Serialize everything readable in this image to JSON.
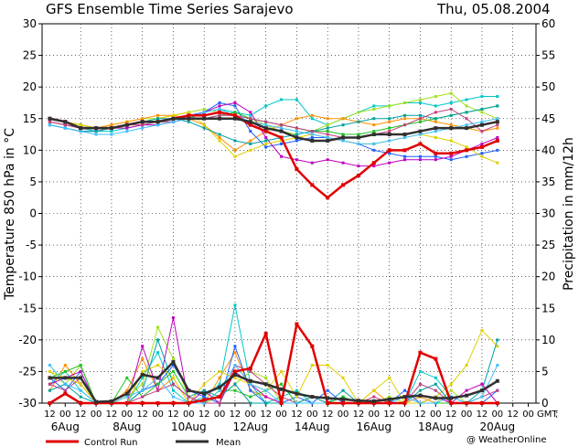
{
  "header": {
    "title": "GFS Ensemble Time Series Sarajevo",
    "date": "Thu, 05.08.2004"
  },
  "credit": "@ WeatherOnline",
  "gmt_label": "GMT",
  "gmt_suffix": ";",
  "chart_data": {
    "type": "line",
    "xlabel": "",
    "ylabel_left": "Temperature 850 hPa in °C",
    "ylabel_right": "Precipitation in mm/12h",
    "ylim_left": [
      -30,
      30
    ],
    "ylim_right": [
      0,
      60
    ],
    "yticks_left": [
      -30,
      -25,
      -20,
      -15,
      -10,
      -5,
      0,
      5,
      10,
      15,
      20,
      25,
      30
    ],
    "yticks_right": [
      0,
      5,
      10,
      15,
      20,
      25,
      30,
      35,
      40,
      45,
      50,
      55,
      60
    ],
    "grid": true,
    "x_hour_labels": [
      "12",
      "00",
      "12",
      "00",
      "12",
      "00",
      "12",
      "00",
      "12",
      "00",
      "12",
      "00",
      "12",
      "00",
      "12",
      "00",
      "12",
      "00",
      "12",
      "00",
      "12",
      "00",
      "12",
      "00",
      "12",
      "00",
      "12",
      "00",
      "12",
      "00",
      "12",
      "00"
    ],
    "x_date_labels": [
      {
        "label": "6Aug",
        "step": 1
      },
      {
        "label": "8Aug",
        "step": 5
      },
      {
        "label": "10Aug",
        "step": 9
      },
      {
        "label": "12Aug",
        "step": 13
      },
      {
        "label": "14Aug",
        "step": 17
      },
      {
        "label": "16Aug",
        "step": 21
      },
      {
        "label": "18Aug",
        "step": 25
      },
      {
        "label": "20Aug",
        "step": 29
      }
    ],
    "legend": [
      {
        "name": "Control Run",
        "color": "#e00000"
      },
      {
        "name": "Mean",
        "color": "#303030"
      }
    ],
    "temperature": {
      "control": [
        15,
        14.5,
        13.5,
        13.5,
        13.5,
        14,
        14.5,
        14.5,
        15,
        15.5,
        15.5,
        16,
        15.5,
        14,
        13,
        12,
        7,
        4.5,
        2.5,
        4.5,
        6,
        8,
        10,
        10,
        11,
        9.5,
        9.5,
        10,
        10.5,
        11.5
      ],
      "mean": [
        15,
        14.5,
        13.5,
        13.5,
        13.5,
        14,
        14.5,
        14.5,
        15,
        15,
        15,
        15,
        15,
        14.5,
        13.5,
        13,
        12,
        11.5,
        11.5,
        12,
        12,
        12.5,
        12.5,
        12.5,
        13,
        13.5,
        13.5,
        13.5,
        14,
        14.5
      ],
      "members": [
        {
          "color": "#00c8c8",
          "values": [
            14.5,
            14,
            13.5,
            13,
            13,
            13.5,
            14,
            14,
            14.5,
            15,
            16,
            16.5,
            16,
            15.5,
            17,
            18,
            18,
            15,
            14,
            15,
            16,
            17,
            17,
            17.5,
            17.5,
            17,
            17.5,
            18,
            18.5,
            18.5
          ]
        },
        {
          "color": "#a0e020",
          "values": [
            14.5,
            14,
            13.5,
            13.5,
            14,
            14.5,
            15,
            15,
            15.5,
            16,
            16.5,
            16,
            15.5,
            15,
            14,
            13,
            12.5,
            13,
            14,
            15,
            16,
            16.5,
            17,
            17.5,
            18,
            18.5,
            19,
            17,
            16,
            15
          ]
        },
        {
          "color": "#ff9000",
          "values": [
            15,
            14.5,
            14,
            13.5,
            14,
            14.5,
            15,
            15.5,
            15.5,
            15,
            14,
            12,
            10,
            11.5,
            13,
            14,
            15,
            15.5,
            15,
            15,
            14.5,
            14,
            14.5,
            15,
            15,
            14.5,
            14,
            13.5,
            13,
            13.5
          ]
        },
        {
          "color": "#2060ff",
          "values": [
            14,
            13.5,
            13,
            13,
            13.5,
            14,
            14.5,
            14.5,
            15,
            15.5,
            16,
            17.5,
            17,
            13,
            10.5,
            11,
            11.5,
            12,
            12,
            11.5,
            11,
            10,
            9.5,
            9,
            9,
            9,
            8.5,
            9,
            9.5,
            10
          ]
        },
        {
          "color": "#c000c0",
          "values": [
            14.5,
            14,
            13.5,
            13.5,
            13.5,
            13.5,
            14,
            14,
            14.5,
            15,
            16,
            17,
            17.5,
            16,
            12,
            9,
            8.5,
            8,
            8.5,
            8,
            7.5,
            7.5,
            8,
            8.5,
            8.5,
            8.5,
            9,
            10,
            11,
            12
          ]
        },
        {
          "color": "#20c020",
          "values": [
            15,
            14.5,
            14,
            13.5,
            13.5,
            14,
            14.5,
            14.5,
            15,
            15,
            15,
            15.5,
            16,
            15,
            14.5,
            14,
            13.5,
            13,
            13,
            12.5,
            12.5,
            13,
            13.5,
            14,
            14.5,
            15,
            15.5,
            16,
            16.5,
            17
          ]
        },
        {
          "color": "#e0d000",
          "values": [
            15,
            14.5,
            14,
            13.5,
            13.5,
            14,
            14.5,
            15,
            15.5,
            16,
            14,
            11.5,
            9,
            10,
            11,
            11.5,
            12,
            12.5,
            12,
            11.5,
            11,
            11,
            11.5,
            12,
            12.5,
            12,
            11.5,
            10.5,
            9,
            8
          ]
        },
        {
          "color": "#00a0a0",
          "values": [
            14,
            13.5,
            13,
            13,
            13.5,
            14,
            14.5,
            15,
            15,
            14.5,
            13.5,
            12.5,
            11.5,
            11,
            11.5,
            12,
            12.5,
            13,
            13.5,
            14,
            14.5,
            15,
            15,
            15.5,
            15.5,
            15,
            15.5,
            16,
            16.5,
            17
          ]
        },
        {
          "color": "#c04080",
          "values": [
            14.5,
            14,
            13.5,
            13.5,
            13.5,
            14,
            14,
            14.5,
            14.5,
            15,
            15,
            15.5,
            15.5,
            15,
            14.5,
            14,
            13.5,
            13,
            12.5,
            12,
            12,
            12.5,
            13,
            14,
            15,
            16,
            16.5,
            15,
            13,
            14
          ]
        },
        {
          "color": "#40c0ff",
          "values": [
            14,
            13.5,
            13,
            12.5,
            12.5,
            13,
            13.5,
            14,
            14.5,
            15,
            16,
            16.5,
            15.5,
            14.5,
            14,
            13.5,
            13,
            12.5,
            12,
            11.5,
            11,
            11,
            11.5,
            12,
            12.5,
            13,
            13.5,
            14,
            14.5,
            15
          ]
        }
      ]
    },
    "precipitation": {
      "control": [
        0,
        1.5,
        0,
        0,
        0,
        0,
        0,
        0,
        0,
        0,
        0.5,
        1,
        5,
        5.5,
        11,
        0,
        12.5,
        9,
        0,
        0,
        0,
        0,
        0,
        0,
        8,
        7,
        0,
        0,
        0,
        0
      ],
      "mean": [
        4,
        4,
        4,
        0.2,
        0.3,
        1.5,
        4.5,
        4,
        6.5,
        2,
        1.5,
        2.5,
        4.5,
        3.5,
        3,
        2.2,
        1.5,
        1,
        0.8,
        0.6,
        0.4,
        0.3,
        0.6,
        1,
        1.2,
        0.8,
        0.8,
        1.2,
        2,
        3.5
      ],
      "members": [
        {
          "color": "#00c8c8",
          "values": [
            3,
            5,
            2,
            0,
            0,
            0,
            4,
            8,
            2,
            0,
            1,
            3,
            15.5,
            3,
            0,
            1,
            2,
            0,
            0,
            1,
            0,
            0,
            0,
            0,
            5,
            4,
            1,
            0,
            0,
            0
          ]
        },
        {
          "color": "#a0e020",
          "values": [
            5,
            3,
            6,
            0,
            0,
            1,
            3,
            12,
            7,
            1,
            0,
            1,
            3,
            5,
            4,
            0,
            0,
            0,
            0,
            0,
            0,
            0,
            1,
            0,
            0,
            0,
            2,
            0,
            0,
            0
          ]
        },
        {
          "color": "#ff9000",
          "values": [
            2,
            6,
            3,
            0,
            0,
            2,
            7,
            2,
            4,
            0,
            0,
            4,
            8,
            2,
            1,
            0,
            0,
            1,
            0,
            0,
            0,
            2,
            0,
            0,
            1,
            0,
            0,
            0,
            0,
            0
          ]
        },
        {
          "color": "#2060ff",
          "values": [
            4,
            2,
            5,
            0,
            0,
            0,
            2,
            3,
            6,
            2,
            1,
            0,
            9,
            2,
            0,
            0,
            1,
            0,
            2,
            0,
            0,
            0,
            0,
            2,
            0,
            0,
            0,
            0,
            0,
            2
          ]
        },
        {
          "color": "#c000c0",
          "values": [
            3,
            4,
            5,
            0,
            0,
            0,
            9,
            2,
            13.5,
            0,
            2,
            0,
            5,
            3,
            1,
            0,
            0,
            0,
            0,
            0,
            0,
            0,
            0,
            0,
            0,
            1,
            0,
            2,
            3,
            0
          ]
        },
        {
          "color": "#20c020",
          "values": [
            4,
            5,
            6,
            0,
            0,
            4,
            1,
            3,
            5,
            1,
            0,
            2,
            2,
            1,
            2,
            3,
            0,
            0,
            0,
            1,
            0,
            0,
            0,
            0,
            0,
            0,
            0,
            0,
            0,
            0
          ]
        },
        {
          "color": "#e0d000",
          "values": [
            5,
            4,
            3,
            0,
            0,
            0,
            5,
            6,
            4,
            0,
            3,
            5,
            4,
            3,
            2,
            5,
            1,
            6,
            6,
            4,
            0,
            2,
            4,
            0,
            0,
            1,
            3,
            6,
            11.5,
            9
          ]
        },
        {
          "color": "#00a0a0",
          "values": [
            2,
            3,
            1,
            0,
            0,
            0,
            2,
            10,
            3,
            1,
            2,
            1,
            3,
            0,
            0,
            0,
            0,
            1,
            0,
            2,
            0,
            0,
            0,
            0,
            2,
            3,
            0,
            0,
            2,
            10
          ]
        },
        {
          "color": "#c04080",
          "values": [
            3,
            2,
            4,
            0,
            0,
            0,
            1,
            2,
            3,
            1,
            0,
            0,
            6,
            5,
            3,
            1,
            0,
            0,
            0,
            0,
            0,
            1,
            0,
            0,
            3,
            2,
            0,
            0,
            1,
            2
          ]
        },
        {
          "color": "#40c0ff",
          "values": [
            6,
            3,
            2,
            0,
            0,
            1,
            2,
            4,
            1,
            0,
            0,
            2,
            6,
            3,
            2,
            0,
            0,
            0,
            0,
            0,
            0,
            0,
            0,
            1,
            0,
            0,
            1,
            0,
            1,
            6
          ]
        }
      ]
    }
  }
}
